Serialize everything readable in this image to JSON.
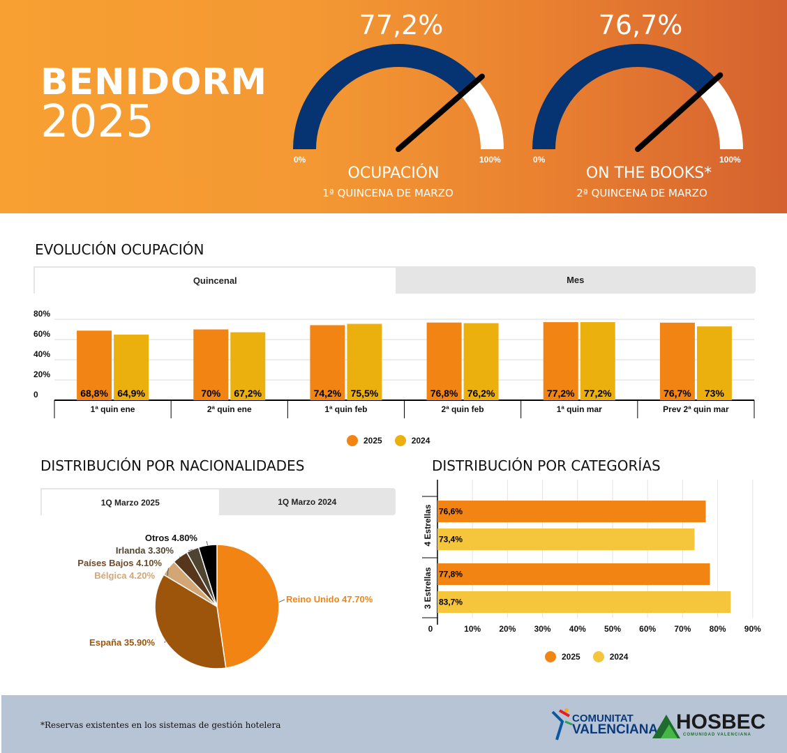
{
  "header": {
    "title": "BENIDORM",
    "year": "2025",
    "gauges": [
      {
        "value": 77.2,
        "display": "77,2%",
        "label": "OCUPACIÓN",
        "sub": "1ª QUINCENA DE MARZO",
        "min_label": "0%",
        "max_label": "100%"
      },
      {
        "value": 76.7,
        "display": "76,7%",
        "label": "ON THE BOOKS*",
        "sub": "2ª QUINCENA DE MARZO",
        "min_label": "0%",
        "max_label": "100%"
      }
    ],
    "colors": {
      "gauge_fill": "#063371",
      "gauge_empty": "#ffffff",
      "needle": "#000000"
    }
  },
  "evolucion": {
    "title": "EVOLUCIÓN OCUPACIÓN",
    "tabs": [
      "Quincenal",
      "Mes"
    ],
    "active_tab": "Quincenal"
  },
  "nacionalidades": {
    "title": "DISTRIBUCIÓN POR NACIONALIDADES",
    "tabs": [
      "1Q Marzo 2025",
      "1Q Marzo 2024"
    ],
    "active_tab": "1Q Marzo 2025"
  },
  "categorias": {
    "title": "DISTRIBUCIÓN POR CATEGORÍAS"
  },
  "chart_data": [
    {
      "type": "bar",
      "categories": [
        "1ª quin ene",
        "2ª quin ene",
        "1ª quin feb",
        "2ª quin feb",
        "1ª quin mar",
        "Prev 2ª quin mar"
      ],
      "series": [
        {
          "name": "2025",
          "values": [
            68.8,
            70,
            74.2,
            76.8,
            77.2,
            76.7
          ],
          "labels": [
            "68,8%",
            "70%",
            "74,2%",
            "76,8%",
            "77,2%",
            "76,7%"
          ],
          "color": "#f28414"
        },
        {
          "name": "2024",
          "values": [
            64.9,
            67.2,
            75.5,
            76.2,
            77.2,
            73
          ],
          "labels": [
            "64,9%",
            "67,2%",
            "75,5%",
            "76,2%",
            "77,2%",
            "73%"
          ],
          "color": "#ebb00e"
        }
      ],
      "yticks": [
        "0",
        "20%",
        "40%",
        "60%",
        "80%"
      ],
      "ylim": [
        0,
        80
      ],
      "grid": true,
      "legend": "bottom"
    },
    {
      "type": "pie",
      "slices": [
        {
          "name": "Reino Unido",
          "value": 47.7,
          "label": "Reino Unido 47.70%",
          "color": "#f28414"
        },
        {
          "name": "España",
          "value": 35.9,
          "label": "España 35.90%",
          "color": "#9d550c"
        },
        {
          "name": "Bélgica",
          "value": 4.2,
          "label": "Bélgica 4.20%",
          "color": "#d2a775"
        },
        {
          "name": "Países Bajos",
          "value": 4.1,
          "label": "Países Bajos 4.10%",
          "color": "#57361b"
        },
        {
          "name": "Irlanda",
          "value": 3.3,
          "label": "Irlanda 3.30%",
          "color": "#4f4432"
        },
        {
          "name": "Otros",
          "value": 4.8,
          "label": "Otros 4.80%",
          "color": "#000000"
        }
      ]
    },
    {
      "type": "bar",
      "orientation": "horizontal",
      "categories": [
        "4 Estrellas",
        "3 Estrellas"
      ],
      "series": [
        {
          "name": "2025",
          "values": [
            76.6,
            77.8
          ],
          "labels": [
            "76,6%",
            "77,8%"
          ],
          "color": "#f28414"
        },
        {
          "name": "2024",
          "values": [
            73.4,
            83.7
          ],
          "labels": [
            "73,4%",
            "83,7%"
          ],
          "color": "#f5c63c"
        }
      ],
      "xticks": [
        "0",
        "10%",
        "20%",
        "30%",
        "40%",
        "50%",
        "60%",
        "70%",
        "80%",
        "90%"
      ],
      "xlim": [
        0,
        90
      ],
      "grid": true,
      "legend": "bottom"
    }
  ],
  "footer": {
    "note": "*Reservas existentes en los sistemas de gestión hotelera",
    "logo1_line1": "COMUNITAT",
    "logo1_line2": "VALENCIANA",
    "logo2_name": "HOSBEC",
    "logo2_sub": "COMUNIDAD VALENCIANA"
  }
}
